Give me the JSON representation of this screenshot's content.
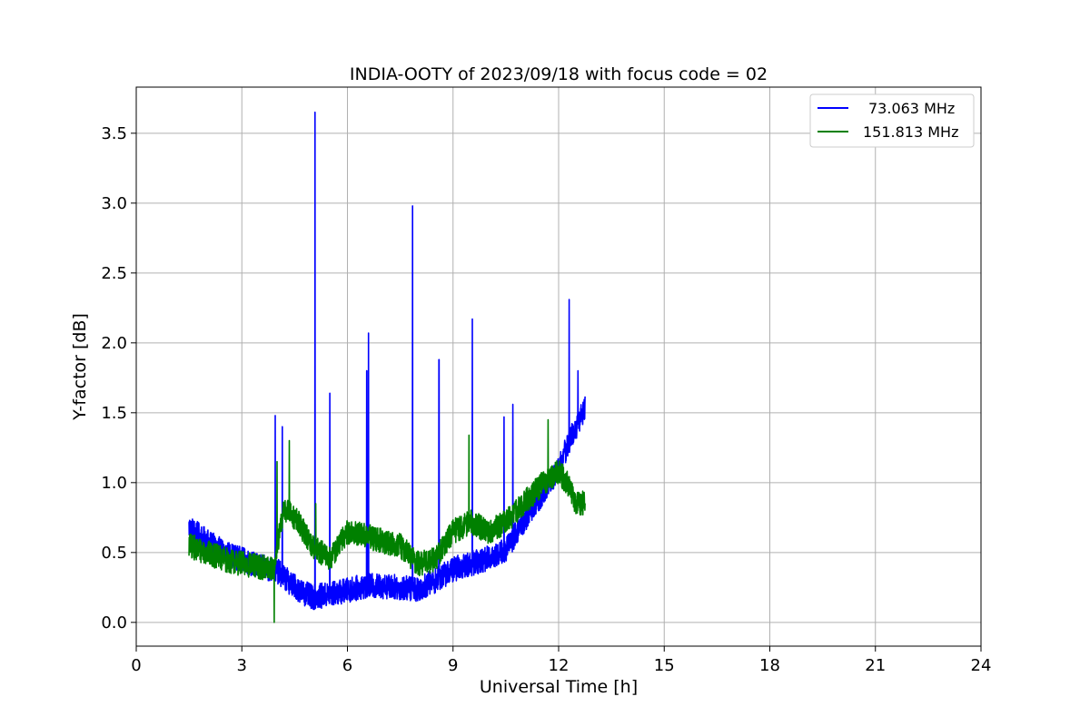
{
  "chart_data": {
    "type": "line",
    "title": "INDIA-OOTY of 2023/09/18 with focus code = 02",
    "xlabel": "Universal Time [h]",
    "ylabel": "Y-factor [dB]",
    "xlim": [
      0,
      24
    ],
    "ylim": [
      -0.17,
      3.83
    ],
    "x_ticks": [
      0,
      3,
      6,
      9,
      12,
      15,
      18,
      21,
      24
    ],
    "y_ticks": [
      0.0,
      0.5,
      1.0,
      1.5,
      2.0,
      2.5,
      3.0,
      3.5
    ],
    "x_tick_labels": [
      "0",
      "3",
      "6",
      "9",
      "12",
      "15",
      "18",
      "21",
      "24"
    ],
    "y_tick_labels": [
      "0.0",
      "0.5",
      "1.0",
      "1.5",
      "2.0",
      "2.5",
      "3.0",
      "3.5"
    ],
    "grid": true,
    "legend_position": "top-right",
    "series": [
      {
        "name": "73.063 MHz",
        "color": "#0000ff",
        "noise_amplitude": 0.09,
        "baseline": [
          [
            1.5,
            0.68
          ],
          [
            2.0,
            0.58
          ],
          [
            2.5,
            0.5
          ],
          [
            3.0,
            0.45
          ],
          [
            3.5,
            0.4
          ],
          [
            4.0,
            0.37
          ],
          [
            4.3,
            0.3
          ],
          [
            4.7,
            0.22
          ],
          [
            5.0,
            0.18
          ],
          [
            5.5,
            0.2
          ],
          [
            6.0,
            0.23
          ],
          [
            6.5,
            0.26
          ],
          [
            7.0,
            0.26
          ],
          [
            7.5,
            0.25
          ],
          [
            8.0,
            0.24
          ],
          [
            8.5,
            0.3
          ],
          [
            9.0,
            0.38
          ],
          [
            9.5,
            0.42
          ],
          [
            10.0,
            0.46
          ],
          [
            10.5,
            0.52
          ],
          [
            11.0,
            0.72
          ],
          [
            11.5,
            0.9
          ],
          [
            12.0,
            1.1
          ],
          [
            12.3,
            1.3
          ],
          [
            12.6,
            1.45
          ],
          [
            12.75,
            1.55
          ]
        ],
        "spikes": [
          [
            3.95,
            1.48
          ],
          [
            4.15,
            1.4
          ],
          [
            5.08,
            3.65
          ],
          [
            5.5,
            1.64
          ],
          [
            6.55,
            1.8
          ],
          [
            6.6,
            2.07
          ],
          [
            7.85,
            2.98
          ],
          [
            8.6,
            1.88
          ],
          [
            9.55,
            2.17
          ],
          [
            10.45,
            1.47
          ],
          [
            10.7,
            1.56
          ],
          [
            12.3,
            2.31
          ],
          [
            12.55,
            1.8
          ]
        ]
      },
      {
        "name": "151.813 MHz",
        "color": "#008000",
        "noise_amplitude": 0.09,
        "baseline": [
          [
            1.5,
            0.55
          ],
          [
            2.0,
            0.5
          ],
          [
            2.5,
            0.45
          ],
          [
            3.0,
            0.42
          ],
          [
            3.5,
            0.4
          ],
          [
            3.9,
            0.38
          ],
          [
            4.2,
            0.82
          ],
          [
            4.6,
            0.72
          ],
          [
            5.0,
            0.55
          ],
          [
            5.5,
            0.45
          ],
          [
            6.0,
            0.65
          ],
          [
            6.5,
            0.62
          ],
          [
            7.0,
            0.58
          ],
          [
            7.5,
            0.55
          ],
          [
            8.0,
            0.42
          ],
          [
            8.5,
            0.45
          ],
          [
            9.0,
            0.65
          ],
          [
            9.5,
            0.72
          ],
          [
            10.0,
            0.65
          ],
          [
            10.5,
            0.72
          ],
          [
            11.0,
            0.85
          ],
          [
            11.5,
            0.98
          ],
          [
            12.0,
            1.08
          ],
          [
            12.3,
            0.98
          ],
          [
            12.5,
            0.85
          ],
          [
            12.75,
            0.85
          ]
        ],
        "spikes": [
          [
            3.92,
            0.0
          ],
          [
            4.0,
            1.15
          ],
          [
            4.35,
            1.3
          ],
          [
            5.1,
            0.85
          ],
          [
            9.45,
            1.34
          ],
          [
            11.7,
            1.45
          ]
        ]
      }
    ]
  }
}
